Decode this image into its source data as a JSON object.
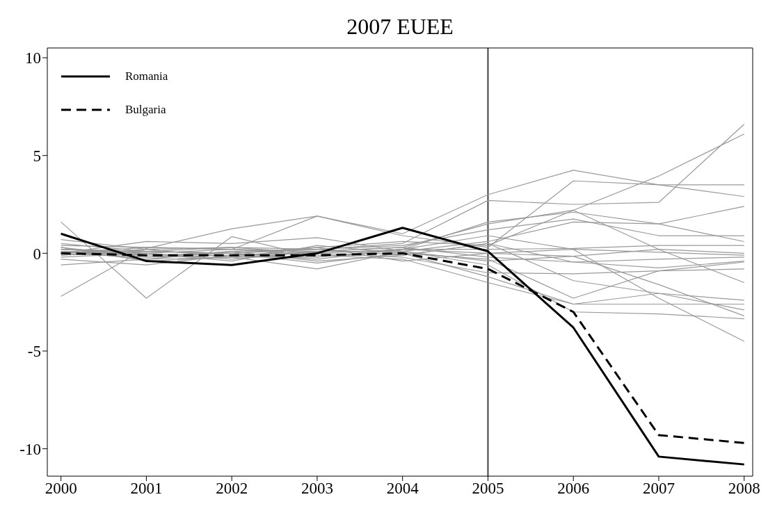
{
  "chart_data": {
    "type": "line",
    "title": "2007 EUEE",
    "x": [
      2000,
      2001,
      2002,
      2003,
      2004,
      2005,
      2006,
      2007,
      2008
    ],
    "xlim": [
      1999.84,
      2008.1
    ],
    "xticks": [
      2000,
      2001,
      2002,
      2003,
      2004,
      2005,
      2006,
      2007,
      2008
    ],
    "ylim": [
      -11.4,
      10.5
    ],
    "yticks": [
      -10,
      -5,
      0,
      5,
      10
    ],
    "grid": false,
    "legend": "top left",
    "ref_lines": [
      {
        "axis": "x",
        "value": 2005,
        "color": "#404040"
      }
    ],
    "series": [
      {
        "color": "#999999",
        "values": [
          0.2,
          0.1,
          0.3,
          0.2,
          0.5,
          2.7,
          2.5,
          2.6,
          6.6
        ]
      },
      {
        "color": "#999999",
        "values": [
          0.1,
          0.0,
          0.2,
          0.1,
          0.3,
          1.5,
          2.2,
          3.95,
          6.1
        ]
      },
      {
        "color": "#999999",
        "values": [
          0.4,
          0.3,
          0.2,
          1.9,
          1.0,
          3.0,
          4.25,
          3.5,
          2.9
        ]
      },
      {
        "color": "#999999",
        "values": [
          -2.2,
          0.25,
          1.25,
          1.9,
          0.9,
          0.3,
          3.7,
          3.5,
          3.5
        ]
      },
      {
        "color": "#999999",
        "values": [
          1.6,
          -2.3,
          0.85,
          -0.2,
          0.2,
          1.6,
          2.1,
          1.5,
          2.4
        ]
      },
      {
        "color": "#999999",
        "values": [
          0.1,
          -0.1,
          0.0,
          0.2,
          0.4,
          1.2,
          1.75,
          0.9,
          0.9
        ]
      },
      {
        "color": "#999999",
        "values": [
          0.0,
          0.6,
          0.5,
          0.8,
          0.1,
          0.6,
          1.6,
          1.5,
          0.6
        ]
      },
      {
        "color": "#999999",
        "values": [
          -0.6,
          -0.3,
          -0.2,
          0.3,
          0.6,
          0.4,
          2.2,
          0.2,
          -1.5
        ]
      },
      {
        "color": "#999999",
        "values": [
          0.7,
          0.2,
          0.3,
          0.0,
          0.2,
          0.2,
          0.25,
          0.4,
          0.4
        ]
      },
      {
        "color": "#999999",
        "values": [
          0.3,
          -0.4,
          -0.2,
          -0.8,
          0.1,
          -0.4,
          -0.15,
          0.2,
          0.0
        ]
      },
      {
        "color": "#999999",
        "values": [
          -0.1,
          0.1,
          0.0,
          -0.3,
          0.2,
          0.0,
          0.2,
          0.05,
          -0.1
        ]
      },
      {
        "color": "#999999",
        "values": [
          0.0,
          -0.2,
          0.1,
          -0.4,
          -0.1,
          0.5,
          -0.45,
          -0.3,
          -0.2
        ]
      },
      {
        "color": "#999999",
        "values": [
          0.2,
          0.0,
          -0.3,
          0.1,
          0.3,
          -0.2,
          -0.45,
          -0.75,
          -0.4
        ]
      },
      {
        "color": "#999999",
        "values": [
          -0.3,
          -0.6,
          -0.1,
          0.0,
          -0.2,
          -1.0,
          -1.05,
          -0.9,
          -0.45
        ]
      },
      {
        "color": "#999999",
        "values": [
          0.5,
          0.1,
          0.0,
          -0.5,
          0.0,
          -0.3,
          -2.3,
          -0.9,
          -0.8
        ]
      },
      {
        "color": "#999999",
        "values": [
          0.1,
          -0.3,
          0.1,
          0.2,
          -0.1,
          0.5,
          -1.4,
          -2.05,
          -2.4
        ]
      },
      {
        "color": "#999999",
        "values": [
          -0.2,
          0.0,
          -0.4,
          0.4,
          0.0,
          -1.2,
          -2.6,
          -2.05,
          -2.9
        ]
      },
      {
        "color": "#999999",
        "values": [
          0.0,
          0.3,
          0.2,
          -0.1,
          -0.3,
          -1.5,
          -2.6,
          -2.6,
          -2.6
        ]
      },
      {
        "color": "#999999",
        "values": [
          0.3,
          -0.2,
          -0.1,
          0.1,
          0.1,
          -0.6,
          -3.0,
          -3.1,
          -3.35
        ]
      },
      {
        "color": "#999999",
        "values": [
          -0.1,
          0.2,
          -0.2,
          -0.2,
          0.2,
          0.9,
          0.2,
          -2.3,
          -4.5
        ]
      },
      {
        "color": "#999999",
        "values": [
          0.2,
          0.1,
          0.0,
          0.3,
          -0.4,
          0.0,
          -0.15,
          -1.6,
          -3.2
        ]
      },
      {
        "name": "Romania",
        "color": "#000000",
        "line_style": "solid",
        "values": [
          1.0,
          -0.4,
          -0.6,
          0.0,
          1.3,
          0.1,
          -3.8,
          -10.4,
          -10.8
        ]
      },
      {
        "name": "Bulgaria",
        "color": "#000000",
        "line_style": "dashed",
        "values": [
          0.0,
          -0.1,
          -0.1,
          -0.1,
          0.0,
          -0.8,
          -3.0,
          -9.3,
          -9.7
        ]
      }
    ]
  }
}
